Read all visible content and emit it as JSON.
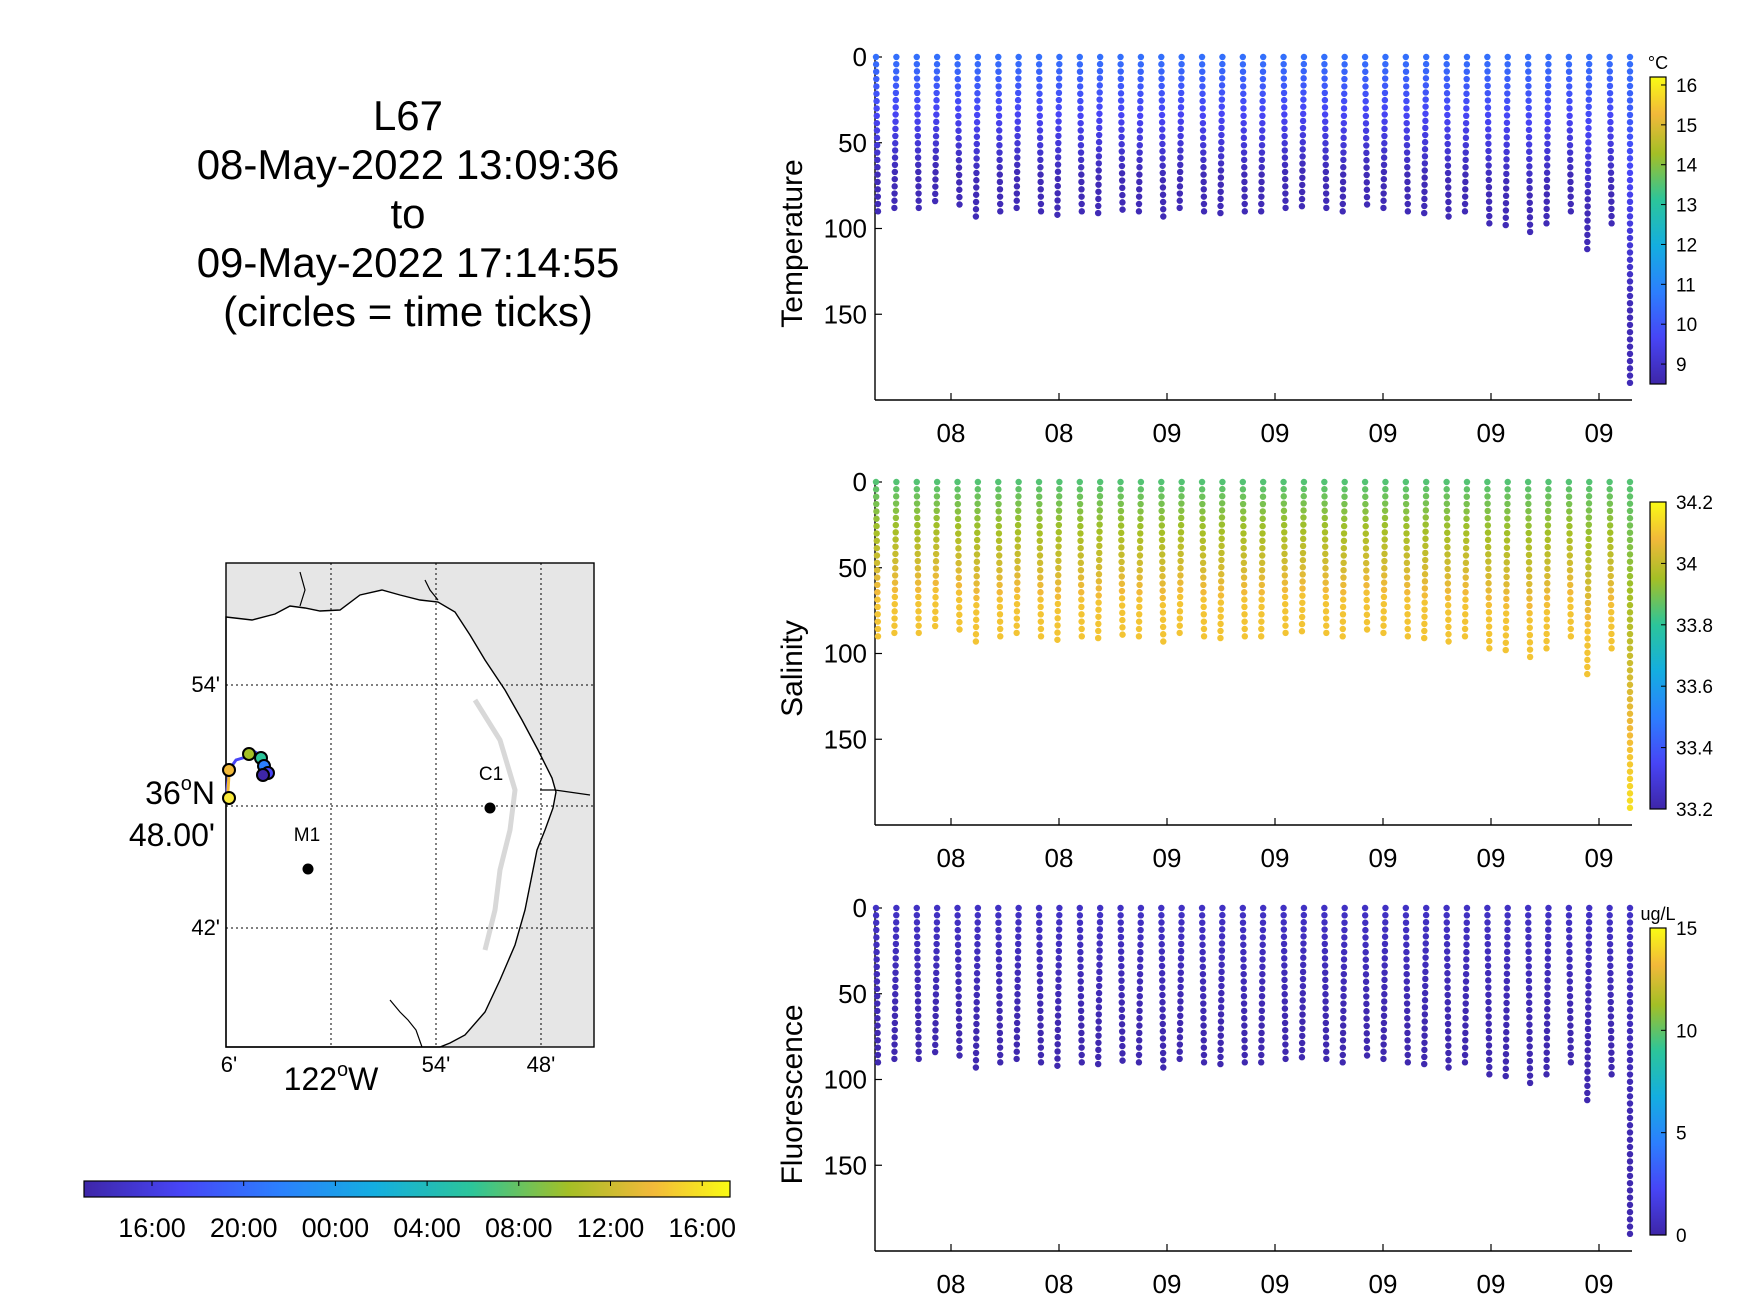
{
  "title": {
    "lines": [
      "L67",
      "08-May-2022 13:09:36",
      "to",
      "09-May-2022 17:14:55",
      "(circles = time ticks)"
    ]
  },
  "map": {
    "lat_ticks": [
      {
        "label": "54'"
      },
      {
        "label": "42'"
      }
    ],
    "lat_main": {
      "deg": "36",
      "sup": "o",
      "hem": "N",
      "min": "48.00'"
    },
    "lon_ticks": [
      {
        "label": "6'"
      },
      {
        "label": "54'"
      },
      {
        "label": "48'"
      }
    ],
    "lon_main": {
      "deg": "122",
      "sup": "o",
      "hem": "W"
    },
    "stations": [
      {
        "name": "M1"
      },
      {
        "name": "C1"
      }
    ]
  },
  "time_colorbar": {
    "labels": [
      "16:00",
      "20:00",
      "00:00",
      "04:00",
      "08:00",
      "12:00",
      "16:00"
    ]
  },
  "chart_data": [
    {
      "type": "scatter",
      "ylabel": "Temperature",
      "ylim": [
        200,
        0
      ],
      "yticks": [
        0,
        50,
        100,
        150
      ],
      "xtick_labels": [
        "08",
        "08",
        "09",
        "09",
        "09",
        "09",
        "09"
      ],
      "colorbar": {
        "unit": "°C",
        "min": 8.5,
        "max": 16.2,
        "ticks": [
          9,
          10,
          11,
          12,
          13,
          14,
          15,
          16
        ]
      },
      "surface_value": 10.5,
      "bottom_value": 8.7,
      "profile_max_depths": [
        90,
        88,
        88,
        84,
        86,
        93,
        90,
        88,
        90,
        92,
        90,
        91,
        89,
        90,
        93,
        88,
        90,
        91,
        90,
        90,
        88,
        87,
        88,
        90,
        86,
        88,
        90,
        91,
        93,
        90,
        97,
        98,
        102,
        97,
        90,
        112,
        97,
        190
      ]
    },
    {
      "type": "scatter",
      "ylabel": "Salinity",
      "ylim": [
        200,
        0
      ],
      "yticks": [
        0,
        50,
        100,
        150
      ],
      "xtick_labels": [
        "08",
        "08",
        "09",
        "09",
        "09",
        "09",
        "09"
      ],
      "colorbar": {
        "unit": "",
        "min": 33.2,
        "max": 34.2,
        "ticks": [
          33.2,
          33.4,
          33.6,
          33.8,
          34,
          34.2
        ]
      },
      "surface_value": 33.85,
      "bottom_value": 34.1,
      "profile_max_depths": [
        90,
        88,
        88,
        84,
        86,
        93,
        90,
        88,
        90,
        92,
        90,
        91,
        89,
        90,
        93,
        88,
        90,
        91,
        90,
        90,
        88,
        87,
        88,
        90,
        86,
        88,
        90,
        91,
        93,
        90,
        97,
        98,
        102,
        97,
        90,
        112,
        97,
        190
      ]
    },
    {
      "type": "scatter",
      "ylabel": "Fluorescence",
      "ylim": [
        200,
        0
      ],
      "yticks": [
        0,
        50,
        100,
        150
      ],
      "xtick_labels": [
        "08",
        "08",
        "09",
        "09",
        "09",
        "09",
        "09"
      ],
      "colorbar": {
        "unit": "ug/L",
        "min": 0,
        "max": 15,
        "ticks": [
          0,
          5,
          10,
          15
        ]
      },
      "surface_value": 0.8,
      "bottom_value": 0.2,
      "profile_max_depths": [
        90,
        88,
        88,
        84,
        86,
        93,
        90,
        88,
        90,
        92,
        90,
        91,
        89,
        90,
        93,
        88,
        90,
        91,
        90,
        90,
        88,
        87,
        88,
        90,
        86,
        88,
        90,
        91,
        93,
        90,
        97,
        98,
        102,
        97,
        90,
        112,
        97,
        190
      ]
    }
  ]
}
